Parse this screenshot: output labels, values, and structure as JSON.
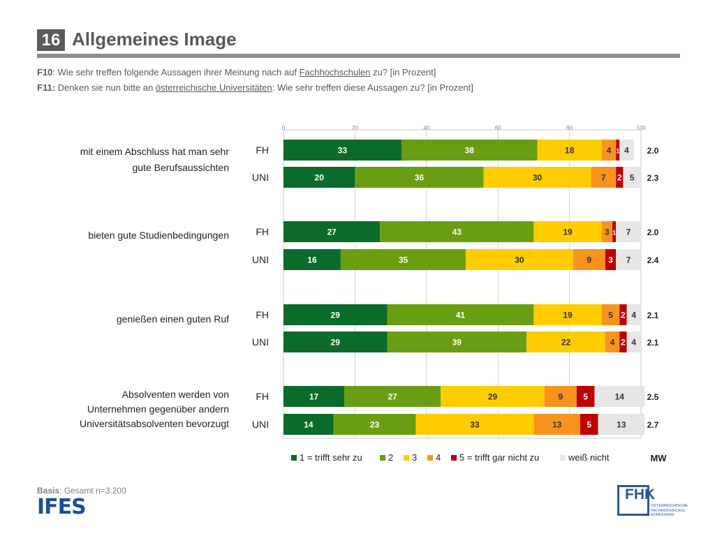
{
  "header": {
    "number": "16",
    "title": "Allgemeines Image"
  },
  "questions": {
    "f10": {
      "code": "F10",
      "pre": ": Wie sehr treffen folgende Aussagen ihrer Meinung nach auf ",
      "link": "Fachhochschulen",
      "post": " zu? [in Prozent]"
    },
    "f11": {
      "code": "F11:",
      "pre": " Denken sie nun bitte an ",
      "link": "österreichische Universitäten",
      "post": ": Wie sehr treffen diese Aussagen zu? [in Prozent]"
    }
  },
  "footer": {
    "basis_label": "Basis",
    "basis_text": ": Gesamt n=3.200",
    "ifes_logo": "IFES",
    "fhk_logo": "FHK",
    "fhk_sub": [
      "ÖSTERREICHISCHE",
      "FACHHOCHSCHUL",
      "KONFERENZ"
    ]
  },
  "chart_data": {
    "type": "bar",
    "orientation": "horizontal",
    "stacked": true,
    "title": "",
    "xlim": [
      0,
      100
    ],
    "xticks": [
      0,
      20,
      40,
      60,
      80,
      100
    ],
    "mw_label": "MW",
    "legend_position": "bottom",
    "series": [
      {
        "name": "1 = trifft sehr zu",
        "color": "#0a6b2a",
        "text_color": "#ffffff"
      },
      {
        "name": "2",
        "color": "#6a9e12",
        "text_color": "#ffffff"
      },
      {
        "name": "3",
        "color": "#ffcc00",
        "text_color": "#333333"
      },
      {
        "name": "4",
        "color": "#f7941d",
        "text_color": "#333333"
      },
      {
        "name": "5 = trifft gar nicht zu",
        "color": "#c00000",
        "text_color": "#ffffff"
      },
      {
        "name": "weiß nicht",
        "color": "#e6e6e6",
        "text_color": "#333333"
      }
    ],
    "groups": [
      {
        "label": [
          "mit einem Abschluss hat man sehr",
          "gute Berufsaussichten"
        ],
        "bars": [
          {
            "label": "FH",
            "values": [
              33,
              38,
              18,
              4,
              1,
              4
            ],
            "mw": "2.0"
          },
          {
            "label": "UNI",
            "values": [
              20,
              36,
              30,
              7,
              2,
              5
            ],
            "mw": "2.3"
          }
        ]
      },
      {
        "label": [
          "bieten gute Studienbedingungen"
        ],
        "bars": [
          {
            "label": "FH",
            "values": [
              27,
              43,
              19,
              3,
              1,
              7
            ],
            "mw": "2.0"
          },
          {
            "label": "UNI",
            "values": [
              16,
              35,
              30,
              9,
              3,
              7
            ],
            "mw": "2.4"
          }
        ]
      },
      {
        "label": [
          "genießen einen guten Ruf"
        ],
        "bars": [
          {
            "label": "FH",
            "values": [
              29,
              41,
              19,
              5,
              2,
              4
            ],
            "mw": "2.1"
          },
          {
            "label": "UNI",
            "values": [
              29,
              39,
              22,
              4,
              2,
              4
            ],
            "mw": "2.1"
          }
        ]
      },
      {
        "label": [
          "Absolventen werden von",
          "Unternehmen gegenüber andern",
          "Universitätsabsolventen bevorzugt"
        ],
        "bars": [
          {
            "label": "FH",
            "values": [
              17,
              27,
              29,
              9,
              5,
              14
            ],
            "mw": "2.5"
          },
          {
            "label": "UNI",
            "values": [
              14,
              23,
              33,
              13,
              5,
              13
            ],
            "mw": "2.7"
          }
        ]
      }
    ]
  }
}
